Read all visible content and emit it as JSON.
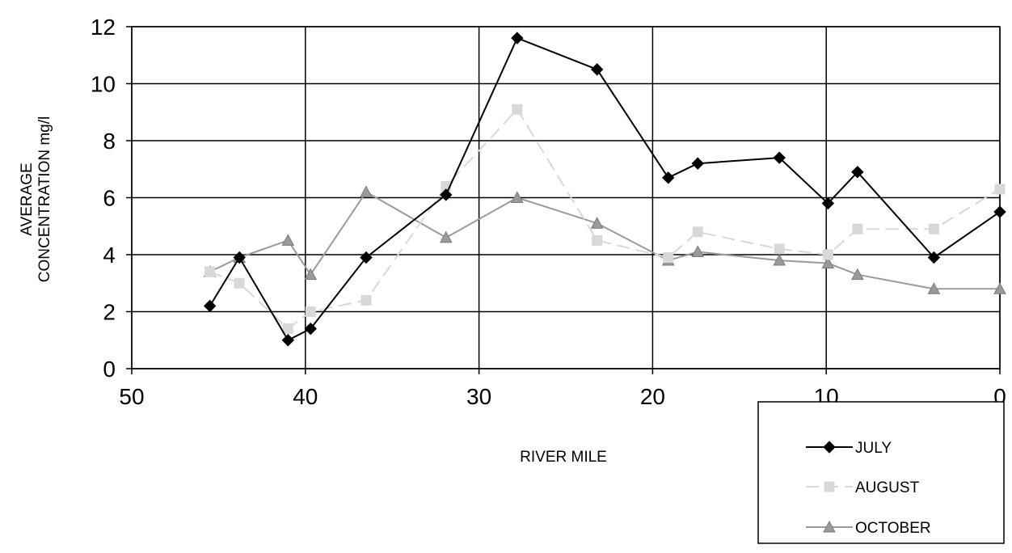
{
  "chart_data": {
    "type": "line",
    "title": "",
    "xlabel": "RIVER MILE",
    "ylabel_lines": [
      "AVERAGE",
      "CONCENTRATION mg/l"
    ],
    "xlim": [
      50,
      0
    ],
    "ylim": [
      0,
      12
    ],
    "x_ticks": [
      50,
      40,
      30,
      20,
      10,
      0
    ],
    "x_tick_labels": [
      "50",
      "40",
      "30",
      "20",
      "10",
      "0"
    ],
    "y_ticks": [
      0,
      2,
      4,
      6,
      8,
      10,
      12
    ],
    "y_tick_labels": [
      "0",
      "2",
      "4",
      "6",
      "8",
      "10",
      "12"
    ],
    "grid": true,
    "legend_position": "bottom-right, below plot",
    "series": [
      {
        "name": "JULY",
        "color": "#000000",
        "line_style": "solid",
        "marker": "diamond",
        "x": [
          45.5,
          43.8,
          41.0,
          39.7,
          36.5,
          31.9,
          27.8,
          23.2,
          19.1,
          17.4,
          12.7,
          9.9,
          8.2,
          3.8,
          0
        ],
        "y": [
          2.2,
          3.9,
          1.0,
          1.4,
          3.9,
          6.1,
          11.6,
          10.5,
          6.7,
          7.2,
          7.4,
          5.8,
          6.9,
          3.9,
          5.5
        ]
      },
      {
        "name": "AUGUST",
        "color": "#d8d8d8",
        "line_style": "dashed",
        "marker": "square",
        "x": [
          45.5,
          43.8,
          41.0,
          39.7,
          36.5,
          31.9,
          27.8,
          23.2,
          19.1,
          17.4,
          12.7,
          9.9,
          8.2,
          3.8,
          0
        ],
        "y": [
          3.4,
          3.0,
          1.4,
          2.0,
          2.4,
          6.4,
          9.1,
          4.5,
          3.9,
          4.8,
          4.2,
          4.0,
          4.9,
          4.9,
          6.3
        ]
      },
      {
        "name": "OCTOBER",
        "color": "#9a9a9a",
        "line_style": "solid",
        "marker": "triangle",
        "x": [
          45.5,
          43.8,
          41.0,
          39.7,
          36.5,
          31.9,
          27.8,
          23.2,
          19.1,
          17.4,
          12.7,
          9.9,
          8.2,
          3.8,
          0
        ],
        "y": [
          3.4,
          3.9,
          4.5,
          3.3,
          6.2,
          4.6,
          6.0,
          5.1,
          3.8,
          4.1,
          3.8,
          3.7,
          3.3,
          2.8,
          2.8
        ]
      }
    ]
  }
}
